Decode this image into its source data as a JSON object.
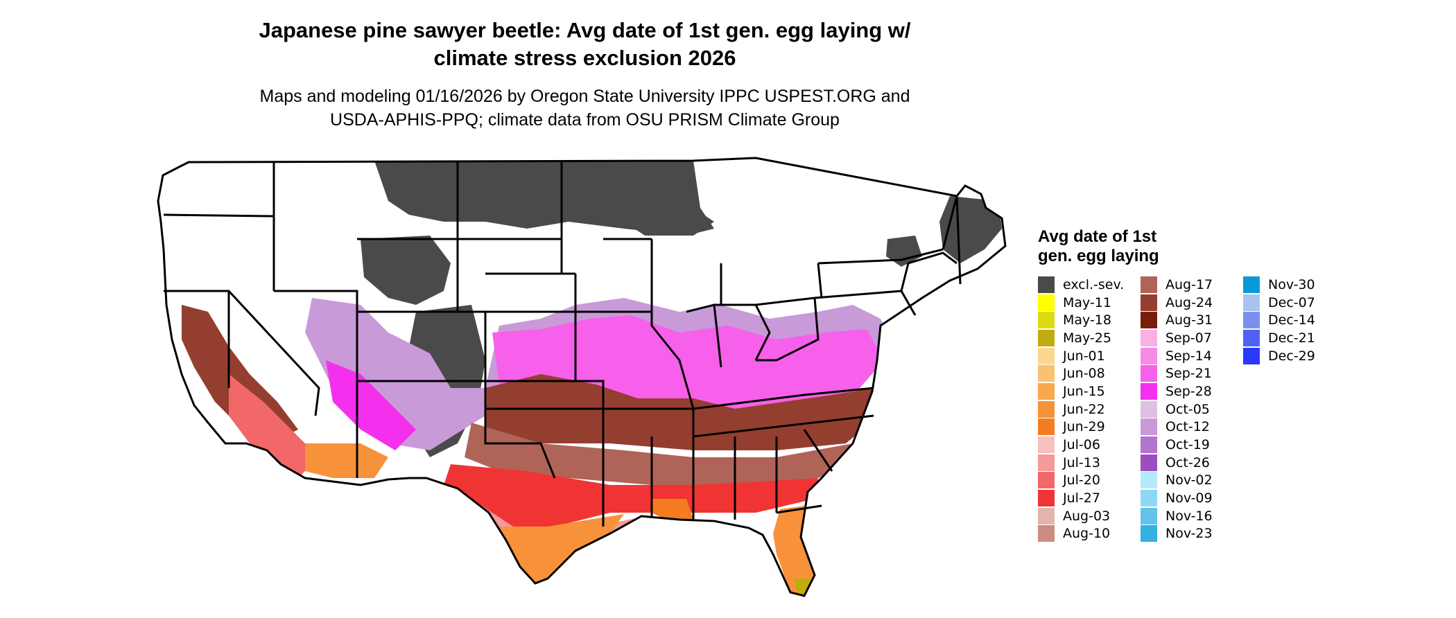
{
  "title": {
    "line1": "Japanese pine sawyer beetle: Avg date of 1st gen. egg laying w/",
    "line2": "climate stress exclusion 2026"
  },
  "subtitle": {
    "line1": "Maps and modeling 01/16/2026 by Oregon State University IPPC USPEST.ORG and",
    "line2": "USDA-APHIS-PPQ; climate data from OSU PRISM Climate Group"
  },
  "legend": {
    "title_line1": "Avg date of 1st",
    "title_line2": "gen. egg laying",
    "columns": [
      [
        {
          "label": "excl.-sev.",
          "color": "#4a4a4a"
        },
        {
          "label": "May-11",
          "color": "#ffff00"
        },
        {
          "label": "May-18",
          "color": "#dcdc10"
        },
        {
          "label": "May-25",
          "color": "#c0ac10"
        },
        {
          "label": "Jun-01",
          "color": "#fdd690"
        },
        {
          "label": "Jun-08",
          "color": "#fbc070"
        },
        {
          "label": "Jun-15",
          "color": "#faa850"
        },
        {
          "label": "Jun-22",
          "color": "#f8923a"
        },
        {
          "label": "Jun-29",
          "color": "#f67c20"
        },
        {
          "label": "Jul-06",
          "color": "#f6c0c0"
        },
        {
          "label": "Jul-13",
          "color": "#f49a9a"
        },
        {
          "label": "Jul-20",
          "color": "#f26868"
        },
        {
          "label": "Jul-27",
          "color": "#f03434"
        },
        {
          "label": "Aug-03",
          "color": "#e2b4ac"
        },
        {
          "label": "Aug-10",
          "color": "#cc8c82"
        }
      ],
      [
        {
          "label": "Aug-17",
          "color": "#b06458"
        },
        {
          "label": "Aug-24",
          "color": "#943e30"
        },
        {
          "label": "Aug-31",
          "color": "#781c0c"
        },
        {
          "label": "Sep-07",
          "color": "#fab0e2"
        },
        {
          "label": "Sep-14",
          "color": "#f88ae6"
        },
        {
          "label": "Sep-21",
          "color": "#f660ea"
        },
        {
          "label": "Sep-28",
          "color": "#f430ee"
        },
        {
          "label": "Oct-05",
          "color": "#dec0e4"
        },
        {
          "label": "Oct-12",
          "color": "#c89ad8"
        },
        {
          "label": "Oct-19",
          "color": "#b274cc"
        },
        {
          "label": "Oct-26",
          "color": "#9c4ec0"
        },
        {
          "label": "Nov-02",
          "color": "#b4eafc"
        },
        {
          "label": "Nov-09",
          "color": "#8cd8f4"
        },
        {
          "label": "Nov-16",
          "color": "#62c4ea"
        },
        {
          "label": "Nov-23",
          "color": "#34b0e2"
        }
      ],
      [
        {
          "label": "Nov-30",
          "color": "#0a98da"
        },
        {
          "label": "Dec-07",
          "color": "#a8c4ee"
        },
        {
          "label": "Dec-14",
          "color": "#7890f0"
        },
        {
          "label": "Dec-21",
          "color": "#5060f4"
        },
        {
          "label": "Dec-29",
          "color": "#2838fc"
        }
      ]
    ]
  }
}
